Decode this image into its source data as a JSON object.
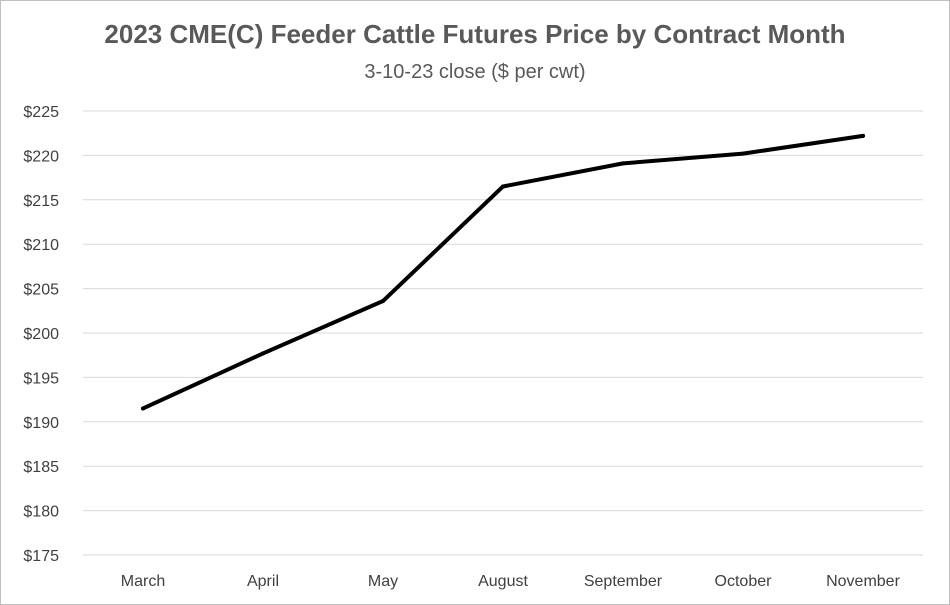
{
  "chart_data": {
    "type": "line",
    "title": "2023 CME(C) Feeder Cattle Futures Price by Contract Month",
    "subtitle": "3-10-23 close ($ per cwt)",
    "categories": [
      "March",
      "April",
      "May",
      "August",
      "September",
      "October",
      "November"
    ],
    "series": [
      {
        "values": [
          191.5,
          197.7,
          203.6,
          216.5,
          219.1,
          220.2,
          222.2
        ]
      }
    ],
    "ylim": [
      175,
      225
    ],
    "yticks": [
      175,
      180,
      185,
      190,
      195,
      200,
      205,
      210,
      215,
      220,
      225
    ],
    "ytick_labels": [
      "$175",
      "$180",
      "$185",
      "$190",
      "$195",
      "$200",
      "$205",
      "$210",
      "$215",
      "$220",
      "$225"
    ],
    "grid": true,
    "legend": "none",
    "colors": {
      "line": "#000000",
      "grid": "#d9d9d9",
      "text": "#595959"
    }
  }
}
